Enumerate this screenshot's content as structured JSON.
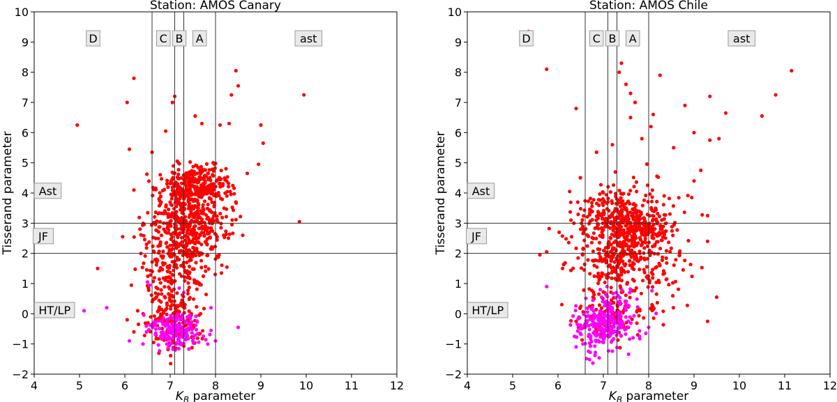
{
  "chart_data": [
    {
      "type": "scatter",
      "title": "Station: AMOS Canary",
      "xlabel": "K_B parameter",
      "ylabel": "Tisserand parameter",
      "xlim": [
        4,
        12
      ],
      "ylim": [
        -2,
        10
      ],
      "xticks": [
        4,
        5,
        6,
        7,
        8,
        9,
        10,
        11,
        12
      ],
      "yticks": [
        -2,
        -1,
        0,
        1,
        2,
        3,
        4,
        5,
        6,
        7,
        8,
        9,
        10
      ],
      "vlines": [
        6.6,
        7.1,
        7.3,
        8.0
      ],
      "hlines": [
        2,
        3
      ],
      "region_labels": [
        {
          "text": "D",
          "x": 5.3,
          "y": 9.1
        },
        {
          "text": "C",
          "x": 6.85,
          "y": 9.1
        },
        {
          "text": "B",
          "x": 7.2,
          "y": 9.1
        },
        {
          "text": "A",
          "x": 7.65,
          "y": 9.1
        },
        {
          "text": "ast",
          "x": 10.05,
          "y": 9.1
        },
        {
          "text": "Ast",
          "x": 4.3,
          "y": 4.05
        },
        {
          "text": "JF",
          "x": 4.2,
          "y": 2.55
        },
        {
          "text": "HT/LP",
          "x": 4.45,
          "y": 0.1
        }
      ],
      "series": [
        {
          "color": "#ff0000",
          "cluster_points": [
            {
              "cx": 7.4,
              "cy": 3.0,
              "sx": 0.45,
              "sy": 0.75,
              "n": 520
            },
            {
              "cx": 7.6,
              "cy": 4.3,
              "sx": 0.38,
              "sy": 0.35,
              "n": 240
            },
            {
              "cx": 7.1,
              "cy": 1.3,
              "sx": 0.3,
              "sy": 0.8,
              "n": 160
            },
            {
              "cx": 7.1,
              "cy": -0.3,
              "sx": 0.3,
              "sy": 0.45,
              "n": 150
            }
          ],
          "points": [
            [
              4.95,
              6.25
            ],
            [
              6.2,
              7.8
            ],
            [
              6.05,
              7.0
            ],
            [
              6.1,
              5.45
            ],
            [
              6.2,
              4.1
            ],
            [
              5.4,
              1.5
            ],
            [
              5.95,
              2.55
            ],
            [
              6.6,
              5.35
            ],
            [
              7.1,
              7.2
            ],
            [
              7.05,
              7.0
            ],
            [
              6.9,
              6.05
            ],
            [
              8.45,
              8.05
            ],
            [
              8.5,
              7.55
            ],
            [
              8.35,
              7.25
            ],
            [
              8.1,
              6.25
            ],
            [
              8.3,
              6.3
            ],
            [
              9.0,
              6.25
            ],
            [
              9.05,
              5.65
            ],
            [
              9.95,
              7.25
            ],
            [
              9.85,
              3.05
            ],
            [
              8.95,
              4.95
            ],
            [
              8.7,
              4.65
            ],
            [
              6.05,
              -0.2
            ],
            [
              6.2,
              -0.6
            ],
            [
              6.3,
              -0.35
            ],
            [
              8.25,
              3.9
            ],
            [
              8.45,
              3.7
            ],
            [
              8.6,
              2.6
            ],
            [
              7.55,
              6.55
            ],
            [
              7.7,
              6.3
            ]
          ]
        },
        {
          "color": "#ff00ff",
          "cluster_points": [
            {
              "cx": 7.1,
              "cy": -0.55,
              "sx": 0.3,
              "sy": 0.3,
              "n": 170
            }
          ],
          "points": [
            [
              4.85,
              0.0
            ],
            [
              5.1,
              0.1
            ],
            [
              5.6,
              0.2
            ],
            [
              6.1,
              -0.9
            ],
            [
              6.5,
              1.05
            ],
            [
              6.55,
              0.95
            ],
            [
              6.4,
              -1.0
            ],
            [
              7.5,
              -0.9
            ],
            [
              7.9,
              -0.55
            ],
            [
              8.5,
              -0.45
            ],
            [
              8.0,
              -0.9
            ],
            [
              7.2,
              0.85
            ],
            [
              7.3,
              0.7
            ],
            [
              7.9,
              0.2
            ]
          ]
        }
      ]
    },
    {
      "type": "scatter",
      "title": "Station: AMOS Chile",
      "xlabel": "K_B parameter",
      "ylabel": "Tisserand parameter",
      "xlim": [
        4,
        12
      ],
      "ylim": [
        -2,
        10
      ],
      "xticks": [
        4,
        5,
        6,
        7,
        8,
        9,
        10,
        11,
        12
      ],
      "yticks": [
        -2,
        -1,
        0,
        1,
        2,
        3,
        4,
        5,
        6,
        7,
        8,
        9,
        10
      ],
      "vlines": [
        6.6,
        7.1,
        7.3,
        8.0
      ],
      "hlines": [
        2,
        3
      ],
      "region_labels": [
        {
          "text": "D",
          "x": 5.3,
          "y": 9.1
        },
        {
          "text": "C",
          "x": 6.85,
          "y": 9.1
        },
        {
          "text": "B",
          "x": 7.2,
          "y": 9.1
        },
        {
          "text": "A",
          "x": 7.65,
          "y": 9.1
        },
        {
          "text": "ast",
          "x": 10.05,
          "y": 9.1
        },
        {
          "text": "Ast",
          "x": 4.3,
          "y": 4.05
        },
        {
          "text": "JF",
          "x": 4.2,
          "y": 2.55
        },
        {
          "text": "HT/LP",
          "x": 4.45,
          "y": 0.1
        }
      ],
      "series": [
        {
          "color": "#ff0000",
          "cluster_points": [
            {
              "cx": 7.5,
              "cy": 2.9,
              "sx": 0.5,
              "sy": 0.65,
              "n": 560
            },
            {
              "cx": 7.3,
              "cy": 1.4,
              "sx": 0.45,
              "sy": 0.75,
              "n": 180
            },
            {
              "cx": 7.0,
              "cy": -0.2,
              "sx": 0.3,
              "sy": 0.4,
              "n": 90
            },
            {
              "cx": 8.3,
              "cy": 1.2,
              "sx": 0.45,
              "sy": 0.7,
              "n": 50
            }
          ],
          "points": [
            [
              5.35,
              9.35
            ],
            [
              5.75,
              8.1
            ],
            [
              6.4,
              6.8
            ],
            [
              7.4,
              8.3
            ],
            [
              7.35,
              8.0
            ],
            [
              7.5,
              7.6
            ],
            [
              7.6,
              7.3
            ],
            [
              7.7,
              7.0
            ],
            [
              8.25,
              7.9
            ],
            [
              8.1,
              6.6
            ],
            [
              8.8,
              6.9
            ],
            [
              9.35,
              7.2
            ],
            [
              9.0,
              6.0
            ],
            [
              9.7,
              6.65
            ],
            [
              10.5,
              6.55
            ],
            [
              10.8,
              7.25
            ],
            [
              11.15,
              8.05
            ],
            [
              9.55,
              5.8
            ],
            [
              9.35,
              5.75
            ],
            [
              8.55,
              5.5
            ],
            [
              7.85,
              5.8
            ],
            [
              7.6,
              6.5
            ],
            [
              7.2,
              5.6
            ],
            [
              6.85,
              5.35
            ],
            [
              8.05,
              6.2
            ],
            [
              9.0,
              4.4
            ],
            [
              9.15,
              4.75
            ],
            [
              8.95,
              3.85
            ],
            [
              9.3,
              3.25
            ],
            [
              9.3,
              2.4
            ],
            [
              9.5,
              0.55
            ],
            [
              9.3,
              -0.25
            ],
            [
              5.6,
              1.95
            ],
            [
              5.75,
              2.05
            ],
            [
              6.1,
              1.5
            ],
            [
              6.4,
              -0.25
            ],
            [
              6.5,
              2.8
            ],
            [
              6.35,
              3.0
            ],
            [
              6.3,
              2.55
            ]
          ]
        },
        {
          "color": "#ff00ff",
          "cluster_points": [
            {
              "cx": 7.0,
              "cy": -0.4,
              "sx": 0.28,
              "sy": 0.4,
              "n": 230
            },
            {
              "cx": 7.4,
              "cy": 0.2,
              "sx": 0.35,
              "sy": 0.35,
              "n": 40
            }
          ],
          "points": [
            [
              5.75,
              0.9
            ],
            [
              6.4,
              -1.1
            ],
            [
              6.55,
              -1.0
            ],
            [
              8.0,
              -0.45
            ],
            [
              7.8,
              -0.75
            ],
            [
              7.5,
              -0.5
            ]
          ]
        }
      ]
    }
  ]
}
